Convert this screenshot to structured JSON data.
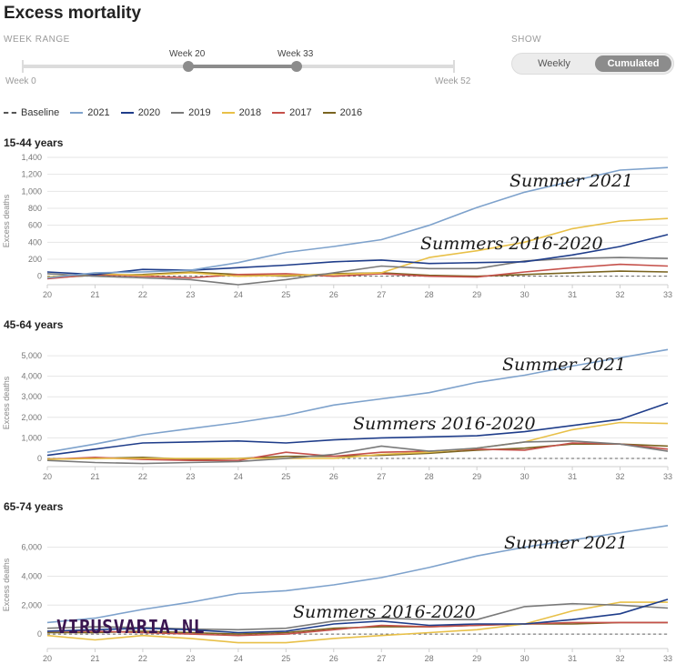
{
  "header": {
    "title": "Excess mortality"
  },
  "week_range": {
    "label": "WEEK RANGE",
    "start_value": "Week 20",
    "end_value": "Week 33",
    "min_label": "Week 0",
    "max_label": "Week 52",
    "min": 0,
    "max": 52,
    "start": 20,
    "end": 33
  },
  "show": {
    "label": "SHOW",
    "options": [
      "Weekly",
      "Cumulated"
    ],
    "selected": "Cumulated"
  },
  "legend": [
    {
      "name": "Baseline",
      "color": "#555555",
      "dashed": true
    },
    {
      "name": "2021",
      "color": "#7ea2cc"
    },
    {
      "name": "2020",
      "color": "#1f3d8a"
    },
    {
      "name": "2019",
      "color": "#7a7a7a"
    },
    {
      "name": "2018",
      "color": "#e8c048"
    },
    {
      "name": "2017",
      "color": "#c5504a"
    },
    {
      "name": "2016",
      "color": "#7a6420"
    }
  ],
  "watermark": "VIRUSVARIA.NL",
  "chart_data": [
    {
      "type": "line",
      "title": "15-44 years",
      "ylabel": "Excess deaths",
      "x": [
        20,
        21,
        22,
        23,
        24,
        25,
        26,
        27,
        28,
        29,
        30,
        31,
        32,
        33
      ],
      "ylim": [
        -100,
        1400
      ],
      "yticks": [
        0,
        200,
        400,
        600,
        800,
        1000,
        1200,
        1400
      ],
      "ytick_labels": [
        "0",
        "200",
        "400",
        "600",
        "800",
        "1,000",
        "1,200",
        "1,400"
      ],
      "series": [
        {
          "name": "2021",
          "values": [
            -20,
            40,
            50,
            70,
            160,
            280,
            350,
            430,
            600,
            810,
            990,
            1120,
            1250,
            1280
          ]
        },
        {
          "name": "2020",
          "values": [
            50,
            20,
            80,
            70,
            100,
            130,
            170,
            190,
            150,
            160,
            170,
            250,
            350,
            490
          ]
        },
        {
          "name": "2019",
          "values": [
            30,
            0,
            -20,
            -40,
            -100,
            -40,
            40,
            120,
            90,
            90,
            180,
            210,
            220,
            210
          ]
        },
        {
          "name": "2018",
          "values": [
            -10,
            30,
            10,
            40,
            0,
            10,
            20,
            40,
            220,
            300,
            400,
            560,
            650,
            680
          ]
        },
        {
          "name": "2017",
          "values": [
            -30,
            20,
            0,
            -20,
            20,
            30,
            0,
            30,
            0,
            -10,
            50,
            100,
            140,
            120
          ]
        },
        {
          "name": "2016",
          "values": [
            -20,
            10,
            20,
            50,
            20,
            0,
            30,
            40,
            10,
            0,
            20,
            40,
            60,
            50
          ]
        }
      ],
      "annotations": [
        "Summer 2021",
        "Summers 2016-2020"
      ]
    },
    {
      "type": "line",
      "title": "45-64 years",
      "ylabel": "Excess deaths",
      "x": [
        20,
        21,
        22,
        23,
        24,
        25,
        26,
        27,
        28,
        29,
        30,
        31,
        32,
        33
      ],
      "ylim": [
        -400,
        5800
      ],
      "yticks": [
        0,
        1000,
        2000,
        3000,
        4000,
        5000
      ],
      "ytick_labels": [
        "0",
        "1,000",
        "2,000",
        "3,000",
        "4,000",
        "5,000"
      ],
      "series": [
        {
          "name": "2021",
          "values": [
            300,
            700,
            1150,
            1450,
            1750,
            2100,
            2600,
            2900,
            3200,
            3700,
            4050,
            4500,
            4900,
            5300
          ]
        },
        {
          "name": "2020",
          "values": [
            150,
            450,
            750,
            800,
            850,
            750,
            900,
            1000,
            1050,
            1100,
            1300,
            1600,
            1900,
            2700
          ]
        },
        {
          "name": "2019",
          "values": [
            -100,
            -200,
            -250,
            -200,
            -150,
            0,
            200,
            600,
            350,
            500,
            800,
            850,
            700,
            350
          ]
        },
        {
          "name": "2018",
          "values": [
            -50,
            0,
            0,
            0,
            0,
            0,
            0,
            200,
            300,
            500,
            800,
            1400,
            1750,
            1700
          ]
        },
        {
          "name": "2017",
          "values": [
            -50,
            50,
            -50,
            -100,
            -100,
            300,
            100,
            300,
            350,
            450,
            400,
            750,
            700,
            450
          ]
        },
        {
          "name": "2016",
          "values": [
            -30,
            0,
            50,
            -50,
            0,
            100,
            100,
            150,
            250,
            400,
            500,
            700,
            700,
            600
          ]
        }
      ],
      "annotations": [
        "Summer 2021",
        "Summers 2016-2020"
      ]
    },
    {
      "type": "line",
      "title": "65-74 years",
      "ylabel": "Excess deaths",
      "x": [
        20,
        21,
        22,
        23,
        24,
        25,
        26,
        27,
        28,
        29,
        30,
        31,
        32,
        33
      ],
      "ylim": [
        -1000,
        7800
      ],
      "yticks": [
        0,
        2000,
        4000,
        6000
      ],
      "ytick_labels": [
        "0",
        "2,000",
        "4,000",
        "6,000"
      ],
      "series": [
        {
          "name": "2021",
          "values": [
            800,
            1100,
            1700,
            2200,
            2800,
            3000,
            3400,
            3900,
            4600,
            5400,
            6000,
            6500,
            7000,
            7500
          ]
        },
        {
          "name": "2020",
          "values": [
            200,
            300,
            400,
            300,
            100,
            200,
            700,
            900,
            600,
            700,
            700,
            1000,
            1400,
            2400
          ]
        },
        {
          "name": "2019",
          "values": [
            400,
            500,
            450,
            350,
            300,
            400,
            900,
            1100,
            1000,
            1000,
            1900,
            2100,
            2000,
            1800
          ]
        },
        {
          "name": "2018",
          "values": [
            -100,
            -400,
            -100,
            -300,
            -600,
            -600,
            -300,
            -100,
            100,
            300,
            700,
            1600,
            2200,
            2200
          ]
        },
        {
          "name": "2017",
          "values": [
            200,
            200,
            100,
            0,
            -100,
            0,
            300,
            600,
            500,
            600,
            700,
            800,
            800,
            800
          ]
        },
        {
          "name": "2016",
          "values": [
            100,
            100,
            200,
            100,
            0,
            100,
            400,
            500,
            500,
            600,
            700,
            700,
            800,
            800
          ]
        }
      ],
      "annotations": [
        "Summer 2021",
        "Summers 2016-2020"
      ]
    }
  ]
}
